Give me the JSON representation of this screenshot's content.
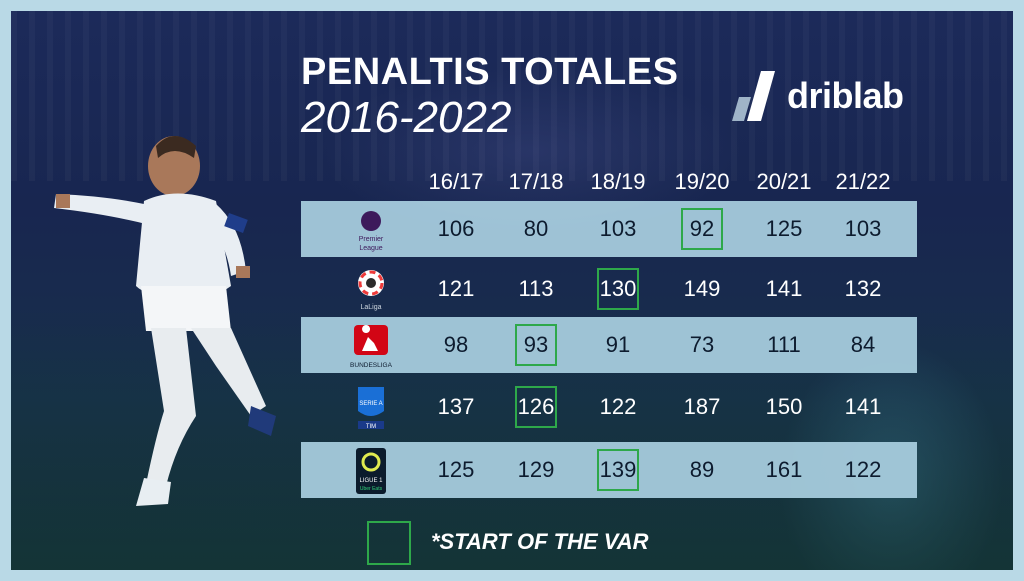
{
  "header": {
    "title": "PENALTIS TOTALES",
    "subtitle": "2016-2022",
    "brand": "driblab"
  },
  "chart_data": {
    "type": "table",
    "columns": [
      "16/17",
      "17/18",
      "18/19",
      "19/20",
      "20/21",
      "21/22"
    ],
    "rows": [
      {
        "league": "Premier League",
        "logo_text": [
          "Premier",
          "League"
        ],
        "values": [
          106,
          80,
          103,
          92,
          125,
          103
        ],
        "var_start_index": 3
      },
      {
        "league": "LaLiga",
        "logo_text": [
          "LaLiga"
        ],
        "values": [
          121,
          113,
          130,
          149,
          141,
          132
        ],
        "var_start_index": 2
      },
      {
        "league": "Bundesliga",
        "logo_text": [
          "BUNDESLIGA"
        ],
        "values": [
          98,
          93,
          91,
          73,
          111,
          84
        ],
        "var_start_index": 1
      },
      {
        "league": "Serie A",
        "logo_text": [
          "SERIE A",
          "TIM"
        ],
        "values": [
          137,
          126,
          122,
          187,
          150,
          141
        ],
        "var_start_index": 1
      },
      {
        "league": "Ligue 1",
        "logo_text": [
          "LIGUE 1",
          "Uber Eats"
        ],
        "values": [
          125,
          129,
          139,
          89,
          161,
          122
        ],
        "var_start_index": 2
      }
    ],
    "legend": "*START OF THE VAR",
    "highlight_color": "#2ea84a",
    "band_color": "#a9cfe0"
  }
}
